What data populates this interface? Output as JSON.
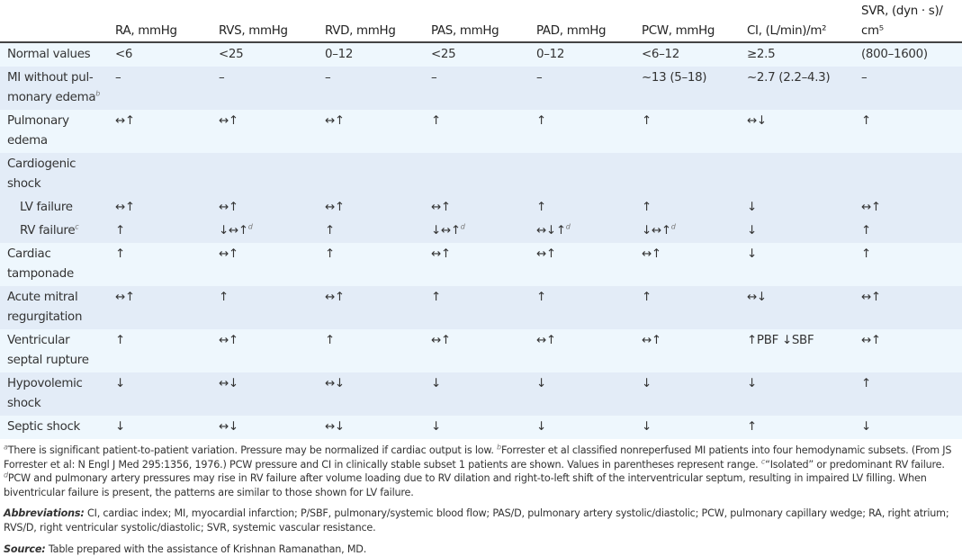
{
  "table": {
    "headers": [
      "",
      "RA, mmHg",
      "RVS, mmHg",
      "RVD, mmHg",
      "PAS, mmHg",
      "PAD, mmHg",
      "PCW, mmHg",
      "CI, (L/min)/m²",
      "SVR, (dyn · s)/ cm⁵"
    ],
    "rows": [
      {
        "label": "Normal values",
        "shade": "light",
        "cells": [
          "<6",
          "<25",
          "0–12",
          "<25",
          "0–12",
          "<6–12",
          "≥2.5",
          "(800–1600)"
        ]
      },
      {
        "label": "MI without pul-monary edema",
        "label_sup": "b",
        "shade": "dark",
        "two": true,
        "cells": [
          "–",
          "–",
          "–",
          "–",
          "–",
          "~13 (5–18)",
          "~2.7 (2.2–4.3)",
          "–"
        ]
      },
      {
        "label": "Pulmonary edema",
        "shade": "light",
        "two": true,
        "cells": [
          "↔↑",
          "↔↑",
          "↔↑",
          "↑",
          "↑",
          "↑",
          "↔↓",
          "↑"
        ]
      },
      {
        "label": "Cardiogenic shock",
        "shade": "dark",
        "two": true,
        "cells": [
          "",
          "",
          "",
          "",
          "",
          "",
          "",
          ""
        ]
      },
      {
        "label": "LV failure",
        "indent": true,
        "shade": "dark",
        "cells": [
          "↔↑",
          "↔↑",
          "↔↑",
          "↔↑",
          "↑",
          "↑",
          "↓",
          "↔↑"
        ]
      },
      {
        "label": "RV failure",
        "label_sup": "c",
        "indent": true,
        "shade": "dark",
        "cells": [
          "↑",
          "↓↔↑",
          "↑",
          "↓↔↑",
          "↔↓↑",
          "↓↔↑",
          "↓",
          "↑"
        ],
        "cell_sups": [
          "",
          "d",
          "",
          "d",
          "d",
          "d",
          "",
          ""
        ]
      },
      {
        "label": "Cardiac tamponade",
        "shade": "light",
        "two": true,
        "cells": [
          "↑",
          "↔↑",
          "↑",
          "↔↑",
          "↔↑",
          "↔↑",
          "↓",
          "↑"
        ]
      },
      {
        "label": "Acute mitral regurgitation",
        "shade": "dark",
        "two": true,
        "cells": [
          "↔↑",
          "↑",
          "↔↑",
          "↑",
          "↑",
          "↑",
          "↔↓",
          "↔↑"
        ]
      },
      {
        "label": "Ventricular septal rupture",
        "shade": "light",
        "two": true,
        "cells": [
          "↑",
          "↔↑",
          "↑",
          "↔↑",
          "↔↑",
          "↔↑",
          "↑PBF ↓SBF",
          "↔↑"
        ]
      },
      {
        "label": "Hypovolemic shock",
        "shade": "dark",
        "two": true,
        "cells": [
          "↓",
          "↔↓",
          "↔↓",
          "↓",
          "↓",
          "↓",
          "↓",
          "↑"
        ]
      },
      {
        "label": "Septic shock",
        "shade": "light",
        "cells": [
          "↓",
          "↔↓",
          "↔↓",
          "↓",
          "↓",
          "↓",
          "↑",
          "↓"
        ]
      }
    ]
  },
  "footnotes": [
    {
      "sup": "a",
      "text": "There is significant patient-to-patient variation. Pressure may be normalized if cardiac output is low. "
    },
    {
      "sup": "b",
      "text": "Forrester et al classified nonreperfused MI patients into four hemodynamic subsets. (From JS Forrester et al: N Engl J Med 295:1356, 1976.) PCW pressure and CI in clinically stable subset 1 patients are shown. Values in parentheses represent range. "
    },
    {
      "sup": "c",
      "text": "“Isolated” or predominant RV failure. "
    },
    {
      "sup": "d",
      "text": "PCW and pulmonary artery pressures may rise in RV failure after volume loading due to RV dilation and right-to-left shift of the interventricular septum, resulting in impaired LV filling. When biventricular failure is present, the patterns are similar to those shown for LV failure."
    }
  ],
  "abbreviations": {
    "label": "Abbreviations:",
    "text": " CI, cardiac index; MI, myocardial infarction; P/SBF, pulmonary/systemic blood flow; PAS/D, pulmonary artery systolic/diastolic; PCW, pulmonary capillary wedge; RA, right atrium; RVS/D, right ventricular systolic/diastolic; SVR, systemic vascular resistance."
  },
  "source": {
    "label": "Source:",
    "text": " Table prepared with the assistance of Krishnan Ramanathan, MD."
  }
}
